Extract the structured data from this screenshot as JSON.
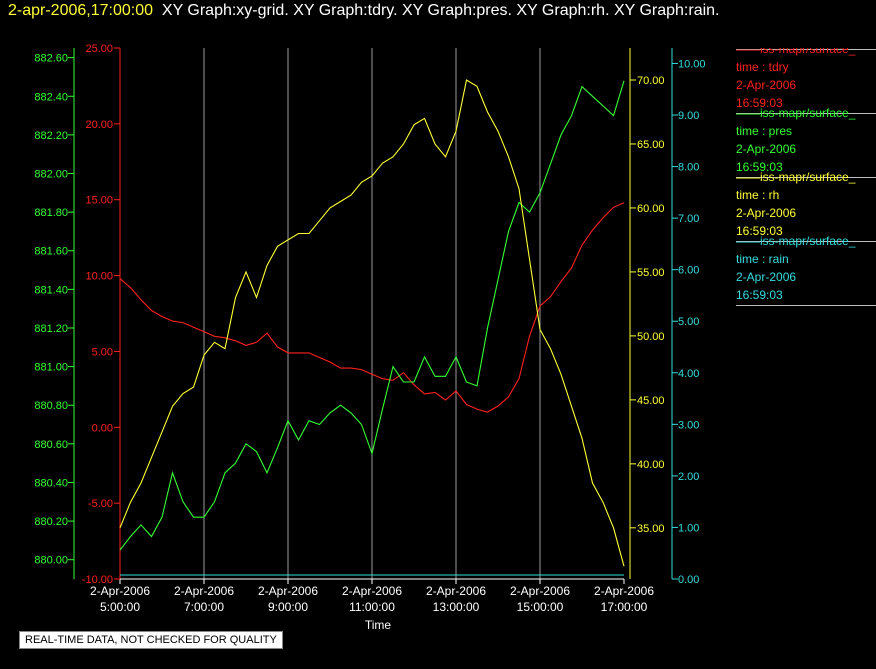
{
  "header": {
    "timestamp": "2-apr-2006,17:00:00",
    "graph_titles": "XY Graph:xy-grid.  XY Graph:tdry.  XY Graph:pres.  XY Graph:rh.  XY Graph:rain."
  },
  "notice": "REAL-TIME DATA, NOT CHECKED FOR QUALITY",
  "legend": [
    {
      "name": "iss-mapr/surface_",
      "var": "time : tdry",
      "date": "2-Apr-2006",
      "time": "16:59:03",
      "color": "#ff2020"
    },
    {
      "name": "iss-mapr/surface_",
      "var": "time : pres",
      "date": "2-Apr-2006",
      "time": "16:59:03",
      "color": "#33ff33"
    },
    {
      "name": "iss-mapr/surface_",
      "var": "time : rh",
      "date": "2-Apr-2006",
      "time": "16:59:03",
      "color": "#ffff33"
    },
    {
      "name": "iss-mapr/surface_",
      "var": "time : rain",
      "date": "2-Apr-2006",
      "time": "16:59:03",
      "color": "#33dddd"
    }
  ],
  "chart_data": {
    "type": "line",
    "xlabel": "Time",
    "x_ticks": [
      {
        "date": "2-Apr-2006",
        "time": "5:00:00"
      },
      {
        "date": "2-Apr-2006",
        "time": "7:00:00"
      },
      {
        "date": "2-Apr-2006",
        "time": "9:00:00"
      },
      {
        "date": "2-Apr-2006",
        "time": "11:00:00"
      },
      {
        "date": "2-Apr-2006",
        "time": "13:00:00"
      },
      {
        "date": "2-Apr-2006",
        "time": "15:00:00"
      },
      {
        "date": "2-Apr-2006",
        "time": "17:00:00"
      }
    ],
    "xlim": [
      5.0,
      17.0
    ],
    "vertical_grid": true,
    "axes": {
      "pres": {
        "ylim": [
          879.9,
          882.65
        ],
        "ticks": [
          "880.00",
          "880.20",
          "880.40",
          "880.60",
          "880.80",
          "881.00",
          "881.20",
          "881.40",
          "881.60",
          "881.80",
          "882.00",
          "882.20",
          "882.40",
          "882.60"
        ],
        "tick_values": [
          880.0,
          880.2,
          880.4,
          880.6,
          880.8,
          881.0,
          881.2,
          881.4,
          881.6,
          881.8,
          882.0,
          882.2,
          882.4,
          882.6
        ],
        "color": "#33ff33"
      },
      "tdry": {
        "ylim": [
          -10,
          25
        ],
        "ticks": [
          "-10.00",
          "-5.00",
          "0.00",
          "5.00",
          "10.00",
          "15.00",
          "20.00",
          "25.00"
        ],
        "tick_values": [
          -10,
          -5,
          0,
          5,
          10,
          15,
          20,
          25
        ],
        "color": "#ff2020"
      },
      "rh": {
        "ylim": [
          31.0,
          72.5
        ],
        "ticks": [
          "35.00",
          "40.00",
          "45.00",
          "50.00",
          "55.00",
          "60.00",
          "65.00",
          "70.00"
        ],
        "tick_values": [
          35,
          40,
          45,
          50,
          55,
          60,
          65,
          70
        ],
        "color": "#ffff33"
      },
      "rain": {
        "ylim": [
          0.0,
          10.3
        ],
        "ticks": [
          "0.00",
          "1.00",
          "2.00",
          "3.00",
          "4.00",
          "5.00",
          "6.00",
          "7.00",
          "8.00",
          "9.00",
          "10.00"
        ],
        "tick_values": [
          0,
          1,
          2,
          3,
          4,
          5,
          6,
          7,
          8,
          9,
          10
        ],
        "color": "#33dddd"
      }
    },
    "series": [
      {
        "name": "tdry",
        "axis": "tdry",
        "color": "#ff2020",
        "x": [
          5.0,
          5.25,
          5.5,
          5.75,
          6.0,
          6.25,
          6.5,
          6.75,
          7.0,
          7.25,
          7.5,
          7.75,
          8.0,
          8.25,
          8.5,
          8.75,
          9.0,
          9.25,
          9.5,
          9.75,
          10.0,
          10.25,
          10.5,
          10.75,
          11.0,
          11.25,
          11.5,
          11.75,
          12.0,
          12.25,
          12.5,
          12.75,
          13.0,
          13.25,
          13.5,
          13.75,
          14.0,
          14.25,
          14.5,
          14.75,
          15.0,
          15.25,
          15.5,
          15.75,
          16.0,
          16.25,
          16.5,
          16.75,
          17.0
        ],
        "y": [
          9.8,
          9.2,
          8.4,
          7.7,
          7.3,
          7.0,
          6.9,
          6.6,
          6.3,
          6.0,
          5.9,
          5.7,
          5.4,
          5.6,
          6.2,
          5.3,
          4.9,
          4.9,
          4.9,
          4.6,
          4.3,
          3.9,
          3.9,
          3.8,
          3.5,
          3.2,
          3.1,
          3.6,
          2.8,
          2.2,
          2.3,
          1.8,
          2.4,
          1.5,
          1.2,
          1.0,
          1.4,
          2.0,
          3.2,
          6.0,
          8.0,
          8.6,
          9.6,
          10.5,
          12.0,
          13.0,
          13.8,
          14.5,
          14.8
        ]
      },
      {
        "name": "pres",
        "axis": "pres",
        "color": "#33ff33",
        "x": [
          5.0,
          5.25,
          5.5,
          5.75,
          6.0,
          6.25,
          6.5,
          6.75,
          7.0,
          7.25,
          7.5,
          7.75,
          8.0,
          8.25,
          8.5,
          8.75,
          9.0,
          9.25,
          9.5,
          9.75,
          10.0,
          10.25,
          10.5,
          10.75,
          11.0,
          11.25,
          11.5,
          11.75,
          12.0,
          12.25,
          12.5,
          12.75,
          13.0,
          13.25,
          13.5,
          13.75,
          14.0,
          14.25,
          14.5,
          14.75,
          15.0,
          15.25,
          15.5,
          15.75,
          16.0,
          16.25,
          16.5,
          16.75,
          17.0
        ],
        "y": [
          880.05,
          880.12,
          880.18,
          880.12,
          880.22,
          880.45,
          880.3,
          880.22,
          880.22,
          880.3,
          880.45,
          880.5,
          880.6,
          880.56,
          880.45,
          880.58,
          880.72,
          880.62,
          880.72,
          880.7,
          880.76,
          880.8,
          880.76,
          880.7,
          880.55,
          880.78,
          881.0,
          880.92,
          880.92,
          881.05,
          880.95,
          880.95,
          881.05,
          880.92,
          880.9,
          881.2,
          881.45,
          881.7,
          881.85,
          881.8,
          881.9,
          882.05,
          882.2,
          882.3,
          882.45,
          882.4,
          882.35,
          882.3,
          882.48
        ]
      },
      {
        "name": "rh",
        "axis": "rh",
        "color": "#ffff33",
        "x": [
          5.0,
          5.25,
          5.5,
          5.75,
          6.0,
          6.25,
          6.5,
          6.75,
          7.0,
          7.25,
          7.5,
          7.75,
          8.0,
          8.25,
          8.5,
          8.75,
          9.0,
          9.25,
          9.5,
          9.75,
          10.0,
          10.25,
          10.5,
          10.75,
          11.0,
          11.25,
          11.5,
          11.75,
          12.0,
          12.25,
          12.5,
          12.75,
          13.0,
          13.25,
          13.5,
          13.75,
          14.0,
          14.25,
          14.5,
          14.75,
          15.0,
          15.25,
          15.5,
          15.75,
          16.0,
          16.25,
          16.5,
          16.75,
          17.0
        ],
        "y": [
          35.0,
          37.0,
          38.5,
          40.5,
          42.5,
          44.5,
          45.5,
          46.0,
          48.5,
          49.5,
          49.0,
          53.0,
          55.0,
          53.0,
          55.5,
          57.0,
          57.5,
          58.0,
          58.0,
          59.0,
          60.0,
          60.5,
          61.0,
          62.0,
          62.5,
          63.5,
          64.0,
          65.0,
          66.5,
          67.0,
          65.0,
          64.0,
          66.0,
          70.0,
          69.5,
          67.5,
          66.0,
          64.0,
          61.5,
          56.0,
          50.5,
          49.0,
          47.0,
          44.5,
          42.0,
          38.5,
          37.0,
          35.0,
          32.0
        ]
      },
      {
        "name": "rain",
        "axis": "rain",
        "color": "#33dddd",
        "x": [
          5.0,
          17.0
        ],
        "y": [
          0.0,
          0.0
        ]
      }
    ]
  }
}
